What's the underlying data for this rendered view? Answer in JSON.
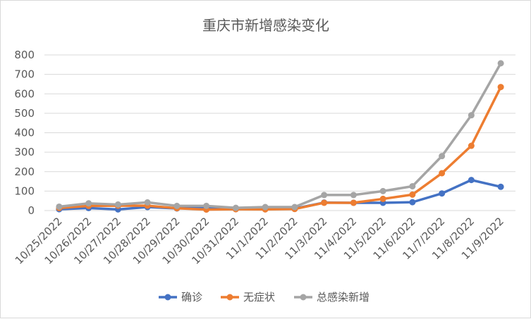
{
  "chart_data": {
    "type": "line",
    "title": "重庆市新增感染变化",
    "xlabel": "",
    "ylabel": "",
    "ylim": [
      0,
      800
    ],
    "yticks": [
      0,
      100,
      200,
      300,
      400,
      500,
      600,
      700,
      800
    ],
    "grid": true,
    "legend_position": "bottom",
    "categories": [
      "10/25/2022",
      "10/26/2022",
      "10/27/2022",
      "10/28/2022",
      "10/29/2022",
      "10/30/2022",
      "10/31/2022",
      "11/1/2022",
      "11/2/2022",
      "11/3/2022",
      "11/4/2022",
      "11/5/2022",
      "11/6/2022",
      "11/7/2022",
      "11/8/2022",
      "11/9/2022"
    ],
    "series": [
      {
        "name": "确诊",
        "color": "#4472c4",
        "values": [
          7,
          13,
          6,
          18,
          11,
          18,
          8,
          12,
          10,
          41,
          40,
          40,
          43,
          88,
          157,
          122
        ]
      },
      {
        "name": "无症状",
        "color": "#ed7d31",
        "values": [
          13,
          24,
          25,
          25,
          12,
          5,
          7,
          6,
          8,
          40,
          40,
          60,
          82,
          192,
          333,
          635
        ]
      },
      {
        "name": "总感染新增",
        "color": "#a5a5a5",
        "values": [
          20,
          37,
          31,
          42,
          24,
          24,
          14,
          18,
          18,
          80,
          80,
          100,
          125,
          280,
          490,
          757
        ]
      }
    ]
  }
}
